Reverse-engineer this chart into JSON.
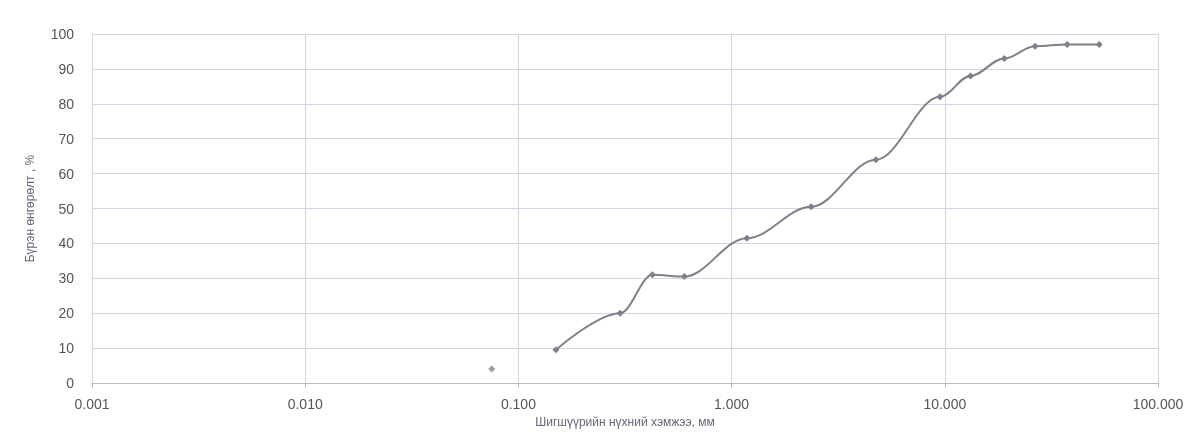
{
  "chart_data": {
    "type": "line",
    "xlabel": "Шигшүүрийн нүхний хэмжээ, мм",
    "ylabel": "Бүрэн өнгөрөлт , %",
    "series": [
      {
        "type": "scatter",
        "color": "#7f8088",
        "x": [
          0.075
        ],
        "values": [
          4
        ]
      },
      {
        "color": "#7f8088",
        "x": [
          0.15,
          0.3,
          0.425,
          0.6,
          1.18,
          2.36,
          4.75,
          9.5,
          13.2,
          19,
          26.5,
          37.5,
          53
        ],
        "values": [
          9.5,
          20,
          31,
          30.5,
          41.5,
          50.5,
          64,
          82,
          88,
          93,
          96.5,
          97,
          97
        ]
      }
    ],
    "log": "x",
    "xlim": [
      0.001,
      100
    ],
    "xticks": [
      {
        "value": 0.001,
        "label": "0.001"
      },
      {
        "value": 0.01,
        "label": "0.010"
      },
      {
        "value": 0.1,
        "label": "0.100"
      },
      {
        "value": 1,
        "label": "1.000"
      },
      {
        "value": 10,
        "label": "10.000"
      },
      {
        "value": 100,
        "label": "100.000"
      }
    ],
    "ylim": [
      0,
      100
    ],
    "yticks": [
      0,
      10,
      20,
      30,
      40,
      50,
      60,
      70,
      80,
      90,
      100
    ],
    "grid": true,
    "marker": "diamond",
    "line_style": "solid"
  }
}
